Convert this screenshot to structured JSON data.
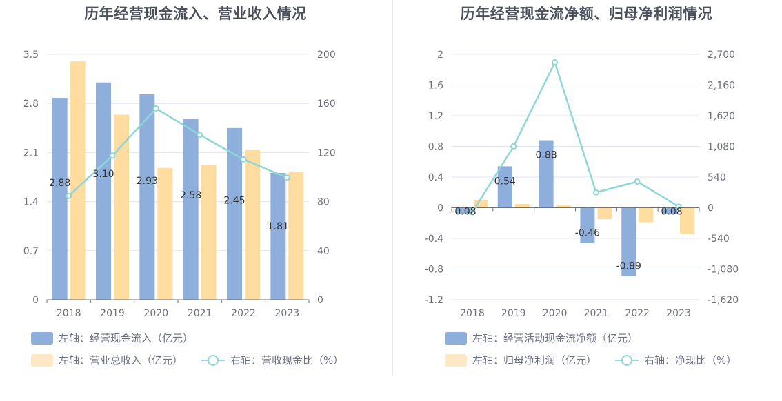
{
  "colors": {
    "bar_primary": "#8eaedb",
    "bar_secondary": "#ffdca0",
    "line": "#8fd6d8",
    "grid": "#e0e6f1",
    "axis": "#6e7079"
  },
  "chart_data": [
    {
      "type": "bar",
      "title": "历年经营现金流入、营业收入情况",
      "categories": [
        "2018",
        "2019",
        "2020",
        "2021",
        "2022",
        "2023"
      ],
      "left_axis": {
        "ylim": [
          0,
          3.5
        ],
        "ticks": [
          "0",
          "0.7",
          "1.4",
          "2.1",
          "2.8",
          "3.5"
        ]
      },
      "right_axis": {
        "ylim": [
          0,
          200
        ],
        "ticks": [
          "0",
          "40",
          "80",
          "120",
          "160",
          "200"
        ]
      },
      "series": [
        {
          "name": "左轴：经营现金流入（亿元）",
          "type": "bar",
          "axis": "left",
          "values": [
            2.88,
            3.1,
            2.93,
            2.58,
            2.45,
            1.81
          ],
          "labels": [
            "2.88",
            "3.10",
            "2.93",
            "2.58",
            "2.45",
            "1.81"
          ]
        },
        {
          "name": "左轴：营业总收入（亿元）",
          "type": "bar",
          "axis": "left",
          "values": [
            3.4,
            2.64,
            1.88,
            1.92,
            2.14,
            1.82
          ]
        },
        {
          "name": "右轴：营收现金比（%）",
          "type": "line",
          "axis": "right",
          "values": [
            84.7,
            117.4,
            155.9,
            134.4,
            114.5,
            99.5
          ]
        }
      ]
    },
    {
      "type": "bar",
      "title": "历年经营现金流净额、归母净利润情况",
      "categories": [
        "2018",
        "2019",
        "2020",
        "2021",
        "2022",
        "2023"
      ],
      "left_axis": {
        "ylim": [
          -1.2,
          2.0
        ],
        "ticks": [
          "-1.2",
          "-0.8",
          "-0.4",
          "0",
          "0.4",
          "0.8",
          "1.2",
          "1.6",
          "2"
        ]
      },
      "right_axis": {
        "ylim": [
          -1620,
          2700
        ],
        "ticks": [
          "-1,620",
          "-1,080",
          "-540",
          "0",
          "540",
          "1,080",
          "1,620",
          "2,160",
          "2,700"
        ]
      },
      "series": [
        {
          "name": "左轴：经营活动现金流净额（亿元）",
          "type": "bar",
          "axis": "left",
          "values": [
            -0.08,
            0.54,
            0.88,
            -0.46,
            -0.89,
            -0.08
          ],
          "labels": [
            "-0.08",
            "0.54",
            "0.88",
            "-0.46",
            "-0.89",
            "-0.08"
          ]
        },
        {
          "name": "左轴：归母净利润（亿元）",
          "type": "bar",
          "axis": "left",
          "values": [
            0.1,
            0.05,
            0.03,
            -0.15,
            -0.19,
            -0.34
          ]
        },
        {
          "name": "右轴：净现比（%）",
          "type": "line",
          "axis": "right",
          "values": [
            -80,
            1080,
            2560,
            270,
            460,
            20
          ]
        }
      ]
    }
  ]
}
